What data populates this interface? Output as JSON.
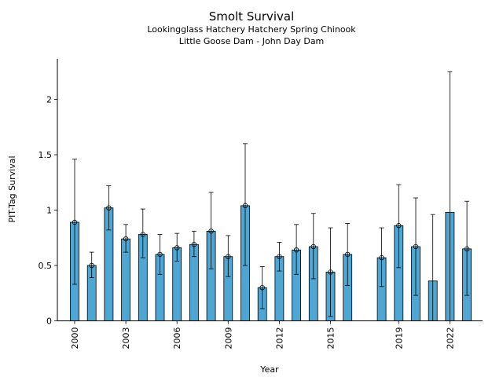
{
  "chart_data": {
    "type": "bar",
    "title": "Smolt Survival",
    "subtitle_lines": [
      "Lookingglass Hatchery Hatchery Spring Chinook",
      "Little Goose Dam - John Day Dam"
    ],
    "xlabel": "Year",
    "ylabel": "PIT-Tag Survival",
    "ylim": [
      0,
      2.35
    ],
    "yticks": [
      0,
      0.5,
      1,
      1.5,
      2
    ],
    "ytick_labels": [
      "0",
      "0.5",
      "1",
      "1.5",
      "2"
    ],
    "xlim": [
      1999.4,
      2024.4
    ],
    "xticks": [
      2000,
      2003,
      2006,
      2009,
      2012,
      2015,
      2019,
      2022
    ],
    "bar_color": "#4da6d3",
    "grid": false,
    "years": [
      2000,
      2001,
      2002,
      2003,
      2004,
      2005,
      2006,
      2007,
      2008,
      2009,
      2010,
      2011,
      2012,
      2013,
      2014,
      2015,
      2016,
      2018,
      2019,
      2020,
      2021,
      2022,
      2023
    ],
    "values": [
      0.89,
      0.5,
      1.02,
      0.74,
      0.78,
      0.6,
      0.66,
      0.69,
      0.81,
      0.58,
      1.04,
      0.3,
      0.58,
      0.64,
      0.67,
      0.44,
      0.6,
      0.57,
      0.86,
      0.67,
      0.36,
      0.98,
      0.65
    ],
    "lower": [
      0.33,
      0.39,
      0.82,
      0.62,
      0.57,
      0.42,
      0.54,
      0.58,
      0.47,
      0.4,
      0.5,
      0.11,
      0.45,
      0.42,
      0.38,
      0.04,
      0.32,
      0.31,
      0.48,
      0.23,
      0.0,
      0.0,
      0.23
    ],
    "upper": [
      1.46,
      0.62,
      1.22,
      0.87,
      1.01,
      0.78,
      0.79,
      0.81,
      1.16,
      0.77,
      1.6,
      0.49,
      0.71,
      0.87,
      0.97,
      0.84,
      0.88,
      0.84,
      1.23,
      1.11,
      0.96,
      2.25,
      1.08
    ],
    "markers": [
      true,
      true,
      true,
      true,
      true,
      true,
      true,
      true,
      true,
      true,
      true,
      true,
      true,
      true,
      true,
      true,
      true,
      true,
      true,
      true,
      false,
      false,
      true
    ]
  }
}
